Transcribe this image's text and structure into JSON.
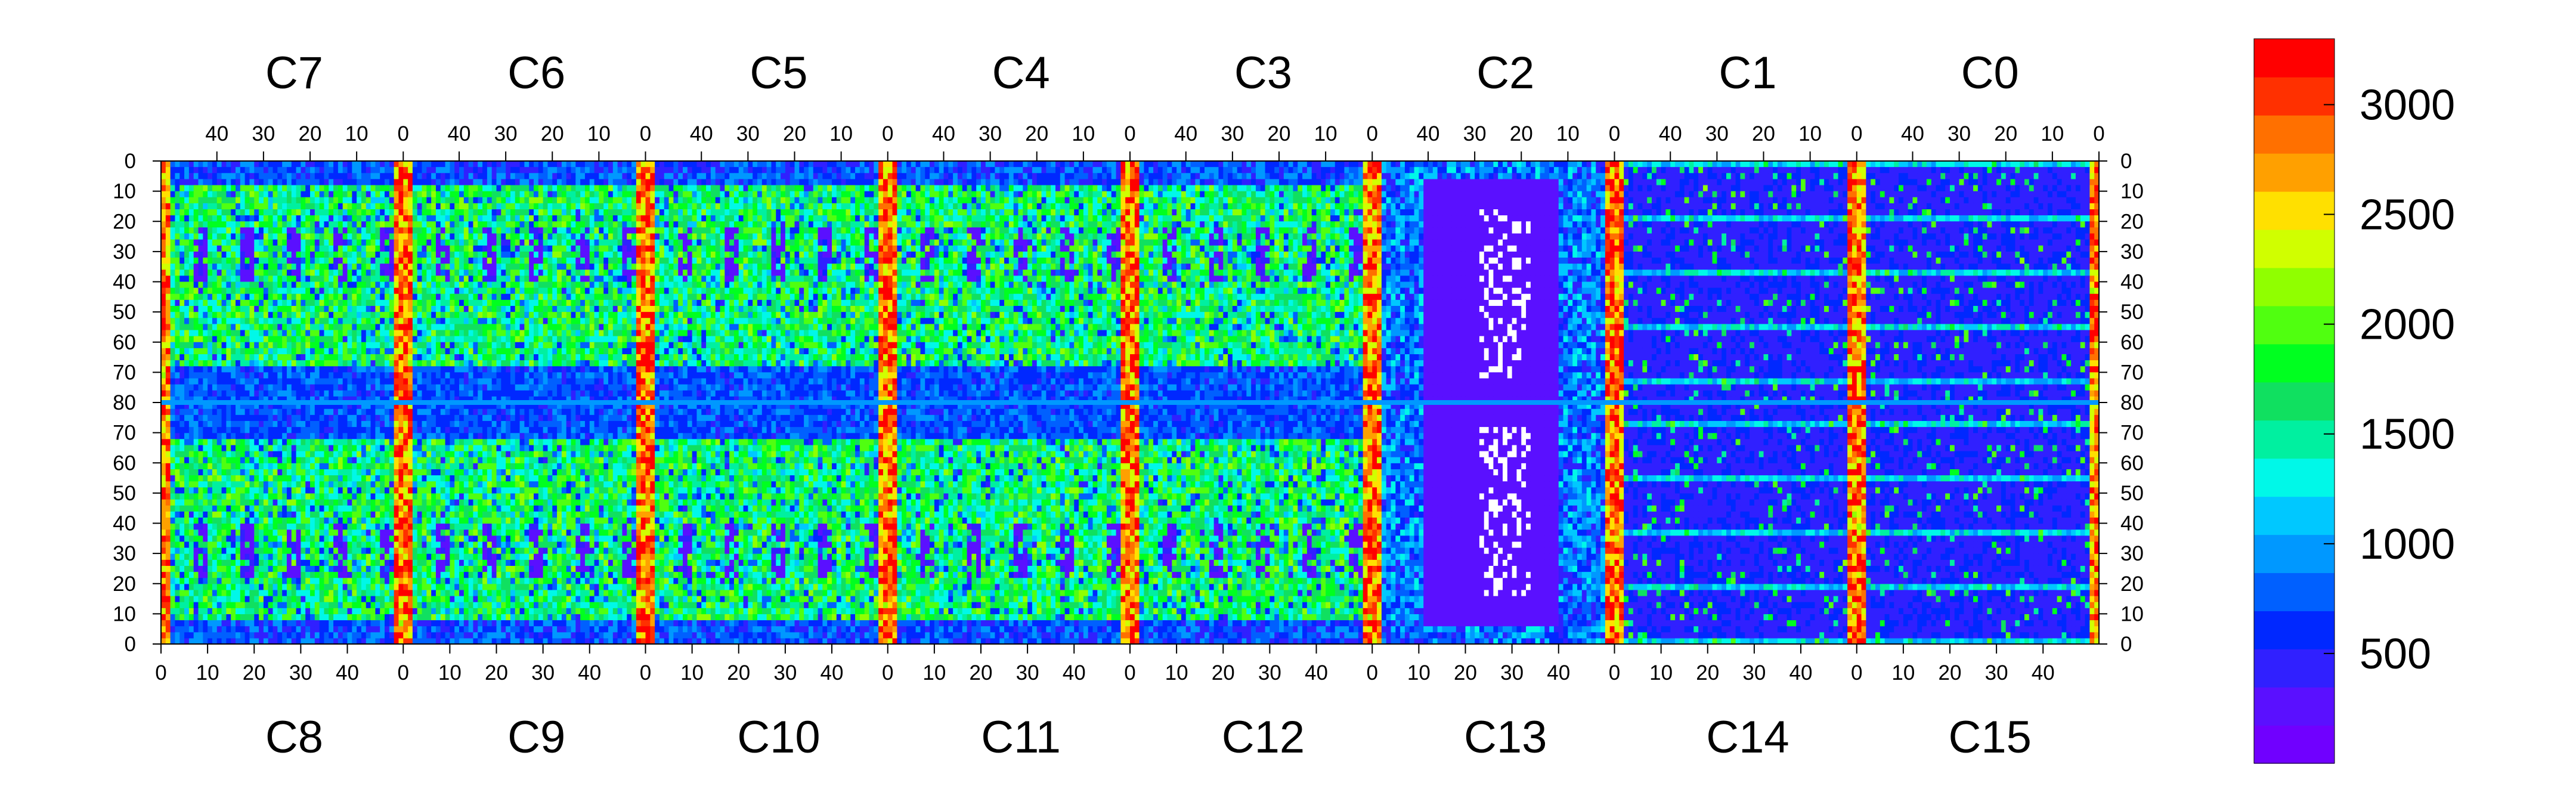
{
  "chart_data": {
    "type": "heatmap",
    "title": "",
    "top_chip_labels": [
      "C7",
      "C6",
      "C5",
      "C4",
      "C3",
      "C2",
      "C1",
      "C0"
    ],
    "bottom_chip_labels": [
      "C8",
      "C9",
      "C10",
      "C11",
      "C12",
      "C13",
      "C14",
      "C15"
    ],
    "top_column_ticks": [
      "40",
      "30",
      "20",
      "10",
      "0"
    ],
    "bottom_column_ticks": [
      "0",
      "10",
      "20",
      "30",
      "40"
    ],
    "row_ticks_left": [
      "0",
      "10",
      "20",
      "30",
      "40",
      "50",
      "60",
      "70",
      "80",
      "70",
      "60",
      "50",
      "40",
      "30",
      "20",
      "10",
      "0"
    ],
    "row_ticks_right": [
      "0",
      "10",
      "20",
      "30",
      "40",
      "50",
      "60",
      "70",
      "80",
      "70",
      "60",
      "50",
      "40",
      "30",
      "20",
      "10",
      "0"
    ],
    "columns_per_chip": 52,
    "rows_per_half": 80,
    "zlim": [
      0,
      3300
    ],
    "colorbar_ticks": [
      500,
      1000,
      1500,
      2000,
      2500,
      3000
    ],
    "colorbar_tick_labels": [
      "500",
      "1000",
      "1500",
      "2000",
      "2500",
      "3000"
    ],
    "colormap": [
      "#7000ff",
      "#5a10ff",
      "#3020ff",
      "#0028ff",
      "#0060ff",
      "#0098ff",
      "#00c8ff",
      "#00f8e8",
      "#00f0a0",
      "#10e060",
      "#00ff20",
      "#50ff10",
      "#90ff00",
      "#d0ff00",
      "#ffe000",
      "#ffa000",
      "#ff7000",
      "#ff3000",
      "#ff0000"
    ],
    "approximate_regions": {
      "background": 450,
      "pixel_rows_upper_band": 1700,
      "pixel_rows_lower_band": 1700,
      "middle_band": 800,
      "chip_edge_columns": 3000,
      "dead_blocks": 300,
      "chip_C13_center": 300,
      "chip_C14_C15": 500,
      "white_zero_pixels": 0
    }
  }
}
